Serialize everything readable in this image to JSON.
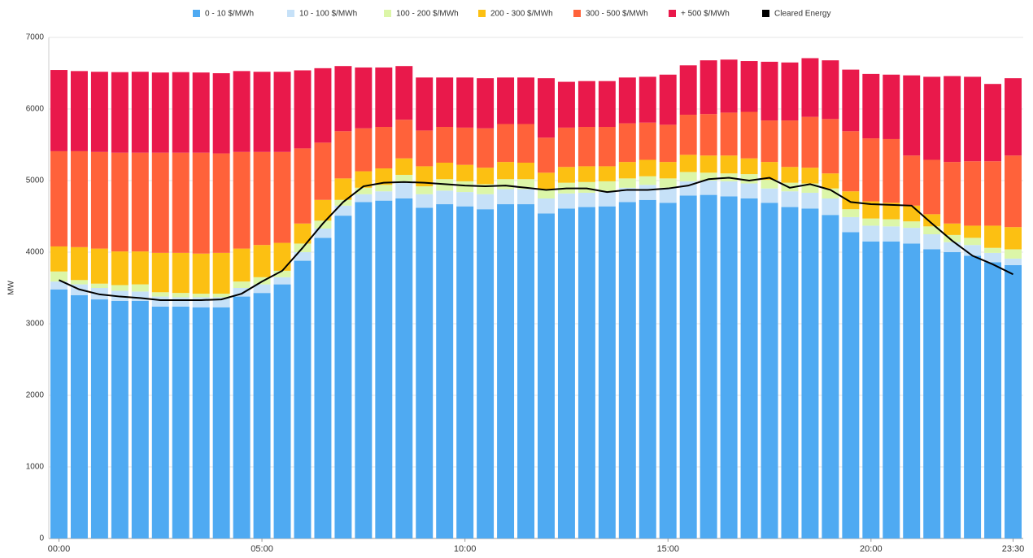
{
  "chart_data": {
    "type": "bar",
    "stacked": true,
    "y_label": "MW",
    "categories": [
      "00:00",
      null,
      null,
      null,
      null,
      null,
      null,
      null,
      null,
      null,
      "05:00",
      null,
      null,
      null,
      null,
      null,
      null,
      null,
      null,
      null,
      "10:00",
      null,
      null,
      null,
      null,
      null,
      null,
      null,
      null,
      null,
      "15:00",
      null,
      null,
      null,
      null,
      null,
      null,
      null,
      null,
      null,
      "20:00",
      null,
      null,
      null,
      null,
      null,
      null,
      "23:30"
    ],
    "ylim": [
      0,
      7000
    ],
    "yticks": [
      0,
      1000,
      2000,
      3000,
      4000,
      5000,
      6000,
      7000
    ],
    "grid": true,
    "legend": "top",
    "series": [
      {
        "name": "0 - 10 $/MWh",
        "color": "#4faaf2",
        "values": [
          3480,
          3400,
          3340,
          3320,
          3320,
          3240,
          3240,
          3230,
          3230,
          3380,
          3430,
          3550,
          3880,
          4200,
          4510,
          4700,
          4720,
          4750,
          4620,
          4670,
          4640,
          4600,
          4670,
          4670,
          4540,
          4610,
          4630,
          4640,
          4700,
          4730,
          4690,
          4790,
          4800,
          4780,
          4750,
          4690,
          4630,
          4610,
          4520,
          4280,
          4150,
          4150,
          4120,
          4040,
          4000,
          3950,
          3860,
          3820
        ]
      },
      {
        "name": "10 - 100 $/MWh",
        "color": "#c6e1f8",
        "values": [
          110,
          150,
          160,
          140,
          130,
          140,
          130,
          140,
          140,
          120,
          120,
          100,
          120,
          130,
          140,
          110,
          130,
          230,
          190,
          190,
          200,
          210,
          210,
          210,
          210,
          210,
          200,
          200,
          200,
          210,
          210,
          200,
          200,
          210,
          210,
          200,
          220,
          220,
          230,
          210,
          220,
          210,
          220,
          210,
          140,
          150,
          130,
          90
        ]
      },
      {
        "name": "100 - 200 $/MWh",
        "color": "#dcf6a8",
        "values": [
          140,
          60,
          60,
          80,
          100,
          60,
          60,
          50,
          50,
          90,
          100,
          90,
          120,
          110,
          80,
          90,
          90,
          100,
          110,
          160,
          150,
          140,
          140,
          140,
          130,
          150,
          150,
          150,
          130,
          120,
          130,
          130,
          110,
          110,
          130,
          120,
          120,
          130,
          140,
          110,
          100,
          100,
          90,
          110,
          100,
          100,
          70,
          130
        ]
      },
      {
        "name": "200 - 300 $/MWh",
        "color": "#fcc012",
        "values": [
          350,
          460,
          490,
          470,
          460,
          550,
          560,
          560,
          570,
          460,
          450,
          390,
          280,
          290,
          300,
          230,
          230,
          230,
          280,
          230,
          230,
          230,
          240,
          230,
          230,
          220,
          220,
          210,
          230,
          230,
          230,
          240,
          240,
          250,
          220,
          250,
          220,
          220,
          210,
          250,
          240,
          230,
          220,
          170,
          160,
          170,
          310,
          310
        ]
      },
      {
        "name": "300 - 500 $/MWh",
        "color": "#ff623a",
        "values": [
          1330,
          1340,
          1350,
          1380,
          1380,
          1400,
          1400,
          1410,
          1390,
          1350,
          1300,
          1270,
          1050,
          800,
          660,
          600,
          580,
          540,
          500,
          500,
          520,
          550,
          530,
          540,
          490,
          550,
          550,
          550,
          540,
          520,
          520,
          560,
          580,
          600,
          650,
          580,
          650,
          710,
          760,
          840,
          880,
          890,
          700,
          760,
          860,
          900,
          900,
          1000
        ]
      },
      {
        "name": "+ 500 $/MWh",
        "color": "#e9194b",
        "values": [
          1135,
          1120,
          1120,
          1125,
          1130,
          1120,
          1125,
          1120,
          1120,
          1130,
          1120,
          1120,
          1090,
          1040,
          910,
          850,
          830,
          750,
          740,
          690,
          700,
          700,
          650,
          650,
          830,
          640,
          640,
          640,
          640,
          640,
          700,
          690,
          750,
          740,
          710,
          820,
          810,
          820,
          820,
          860,
          900,
          900,
          1120,
          1160,
          1200,
          1180,
          1080,
          1080
        ]
      },
      {
        "name": "Cleared Energy",
        "color": "#000000",
        "type": "line",
        "values": [
          3610,
          3480,
          3410,
          3380,
          3360,
          3330,
          3330,
          3330,
          3340,
          3420,
          3590,
          3740,
          4060,
          4400,
          4700,
          4920,
          4970,
          4980,
          4970,
          4950,
          4930,
          4920,
          4930,
          4900,
          4870,
          4890,
          4890,
          4840,
          4870,
          4870,
          4890,
          4930,
          5020,
          5040,
          5000,
          5040,
          4900,
          4950,
          4870,
          4700,
          4670,
          4660,
          4650,
          4400,
          4160,
          3950,
          3830,
          3690
        ]
      }
    ]
  }
}
